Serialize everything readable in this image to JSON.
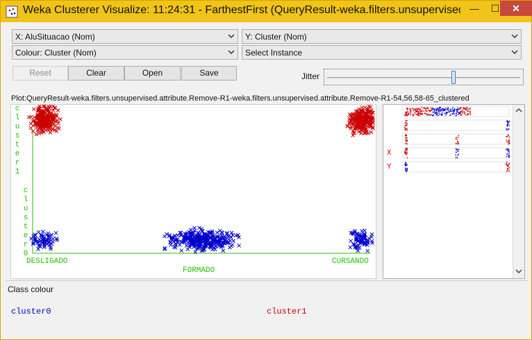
{
  "window": {
    "title": "Weka Clusterer Visualize: 11:24:31 - FarthestFirst (QueryResult-weka.filters.unsupervised.attribu...",
    "controls": {
      "minimize": "—",
      "maximize": "☐",
      "close": "✕"
    }
  },
  "selectors": {
    "x_axis": "X: AluSituacao (Nom)",
    "y_axis": "Y: Cluster (Nom)",
    "colour": "Colour: Cluster (Nom)",
    "instance": "Select Instance"
  },
  "buttons": {
    "reset": "Reset",
    "clear": "Clear",
    "open": "Open",
    "save": "Save"
  },
  "jitter": {
    "label": "Jitter",
    "value": 0.65
  },
  "plot": {
    "title": "Plot:QueryResult-weka.filters.unsupervised.attribute.Remove-R1-weka.filters.unsupervised.attribute.Remove-R1-54,56,58-65_clustered",
    "y_tick_top": "cluster1",
    "y_tick_bottom": "cluster0",
    "x_ticks": [
      "DESLIGADO",
      "FORMADO",
      "CURSANDO"
    ]
  },
  "matrix": {
    "row_labels": [
      "X",
      "Y"
    ]
  },
  "class_colour": {
    "title": "Class colour",
    "classes": [
      {
        "name": "cluster0",
        "color": "#0000cc"
      },
      {
        "name": "cluster1",
        "color": "#cc0000"
      }
    ]
  },
  "colors": {
    "axis": "#22c000",
    "cluster0": "#0000cc",
    "cluster1": "#cc0000",
    "titlebar": "#f0c419"
  },
  "chart_data": {
    "type": "scatter",
    "x_categories": [
      "DESLIGADO",
      "FORMADO",
      "CURSANDO"
    ],
    "y_categories": [
      "cluster0",
      "cluster1"
    ],
    "clusters": [
      {
        "category_x": "DESLIGADO",
        "category_y": "cluster1",
        "color": "#cc0000",
        "approx_count": 250
      },
      {
        "category_x": "CURSANDO",
        "category_y": "cluster1",
        "color": "#cc0000",
        "approx_count": 230
      },
      {
        "category_x": "DESLIGADO",
        "category_y": "cluster0",
        "color": "#0000cc",
        "approx_count": 60
      },
      {
        "category_x": "FORMADO",
        "category_y": "cluster0",
        "color": "#0000cc",
        "approx_count": 320
      },
      {
        "category_x": "CURSANDO",
        "category_y": "cluster0",
        "color": "#0000cc",
        "approx_count": 70
      }
    ]
  }
}
